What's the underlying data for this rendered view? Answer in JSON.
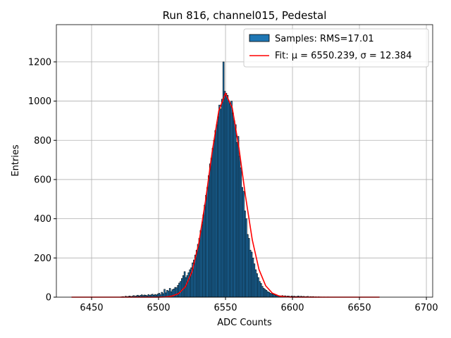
{
  "chart_data": {
    "type": "histogram",
    "title": "Run 816, channel015, Pedestal",
    "xlabel": "ADC Counts",
    "ylabel": "Entries",
    "name": "Samples: RMS=17.01",
    "color": "#1f77b4",
    "edgecolor": "#000000",
    "bins": [
      6470,
      6471,
      6472,
      6473,
      6474,
      6475,
      6476,
      6477,
      6478,
      6479,
      6480,
      6481,
      6482,
      6483,
      6484,
      6485,
      6486,
      6487,
      6488,
      6489,
      6490,
      6491,
      6492,
      6493,
      6494,
      6495,
      6496,
      6497,
      6498,
      6499,
      6500,
      6501,
      6502,
      6503,
      6504,
      6505,
      6506,
      6507,
      6508,
      6509,
      6510,
      6511,
      6512,
      6513,
      6514,
      6515,
      6516,
      6517,
      6518,
      6519,
      6520,
      6521,
      6522,
      6523,
      6524,
      6525,
      6526,
      6527,
      6528,
      6529,
      6530,
      6531,
      6532,
      6533,
      6534,
      6535,
      6536,
      6537,
      6538,
      6539,
      6540,
      6541,
      6542,
      6543,
      6544,
      6545,
      6546,
      6547,
      6548,
      6549,
      6550,
      6551,
      6552,
      6553,
      6554,
      6555,
      6556,
      6557,
      6558,
      6559,
      6560,
      6561,
      6562,
      6563,
      6564,
      6565,
      6566,
      6567,
      6568,
      6569,
      6570,
      6571,
      6572,
      6573,
      6574,
      6575,
      6576,
      6577,
      6578,
      6579,
      6580,
      6581,
      6582,
      6583,
      6584,
      6585,
      6586,
      6587,
      6588,
      6589,
      6590,
      6591,
      6592,
      6593,
      6594,
      6595,
      6596,
      6597,
      6598,
      6599,
      6600,
      6601,
      6602,
      6603,
      6604,
      6605,
      6606,
      6607,
      6608,
      6609,
      6610,
      6611,
      6612,
      6613,
      6614,
      6615,
      6616,
      6617,
      6618,
      6619,
      6620,
      6621,
      6622,
      6623,
      6624,
      6625,
      6626,
      6627,
      6628,
      6629,
      6630
    ],
    "counts": [
      0,
      0,
      2,
      3,
      1,
      5,
      2,
      4,
      6,
      3,
      5,
      8,
      4,
      7,
      10,
      6,
      9,
      12,
      8,
      11,
      10,
      7,
      13,
      9,
      12,
      15,
      10,
      14,
      11,
      16,
      20,
      12,
      25,
      18,
      40,
      22,
      35,
      30,
      45,
      28,
      38,
      42,
      50,
      48,
      60,
      72,
      80,
      95,
      110,
      130,
      100,
      110,
      125,
      140,
      150,
      175,
      190,
      215,
      240,
      270,
      300,
      340,
      370,
      420,
      470,
      520,
      560,
      620,
      680,
      710,
      760,
      800,
      850,
      880,
      920,
      980,
      960,
      1010,
      1200,
      1050,
      1040,
      1030,
      1000,
      990,
      1000,
      940,
      900,
      880,
      790,
      820,
      720,
      660,
      560,
      540,
      440,
      400,
      320,
      300,
      240,
      230,
      200,
      170,
      140,
      120,
      100,
      80,
      70,
      55,
      45,
      40,
      35,
      28,
      25,
      20,
      18,
      15,
      12,
      10,
      9,
      8,
      7,
      6,
      8,
      5,
      7,
      4,
      6,
      5,
      3,
      6,
      4,
      5,
      3,
      4,
      6,
      2,
      5,
      3,
      4,
      2,
      3,
      4,
      1,
      3,
      2,
      3,
      1,
      2,
      0,
      2,
      1,
      1,
      0,
      1,
      0,
      0,
      1,
      0,
      0,
      0
    ],
    "fit": {
      "name": "Fit: μ = 6550.239, σ = 12.384",
      "color": "#ff0000",
      "x": [
        6435,
        6440,
        6445,
        6450,
        6455,
        6460,
        6465,
        6470,
        6475,
        6480,
        6485,
        6490,
        6495,
        6500,
        6505,
        6510,
        6515,
        6520,
        6525,
        6530,
        6535,
        6540,
        6545,
        6550,
        6555,
        6560,
        6565,
        6570,
        6575,
        6580,
        6585,
        6590,
        6595,
        6600,
        6605,
        6610,
        6615,
        6620,
        6625,
        6630,
        6635,
        6640,
        6645,
        6650,
        6655,
        6660,
        6665
      ],
      "values": [
        0,
        0,
        0,
        0,
        0,
        0,
        0,
        0,
        0,
        0,
        0,
        0,
        0,
        0.1,
        1.3,
        5.3,
        18.2,
        52.9,
        130,
        273,
        488,
        739,
        951,
        1040,
        966,
        762,
        512,
        292,
        141,
        58,
        20.2,
        6.0,
        1.5,
        0.3,
        0,
        0,
        0,
        0,
        0,
        0,
        0,
        0,
        0,
        0,
        0,
        0,
        0
      ]
    },
    "xlim": [
      6423.7,
      6704.7
    ],
    "ylim": [
      0,
      1390
    ],
    "xticks": [
      6450,
      6500,
      6550,
      6600,
      6650,
      6700
    ],
    "yticks": [
      0,
      200,
      400,
      600,
      800,
      1000,
      1200
    ],
    "grid": true,
    "legend": "upper right"
  }
}
